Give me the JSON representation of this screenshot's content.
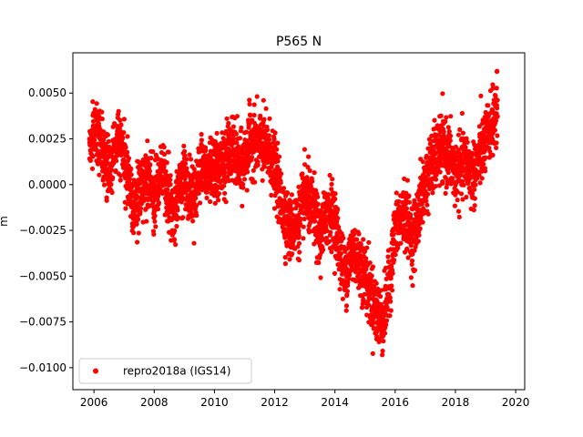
{
  "chart_data": {
    "type": "scatter",
    "title": "P565 N",
    "xlabel": "",
    "ylabel": "m",
    "xlim": [
      2005.3,
      2020.3
    ],
    "ylim": [
      -0.0112,
      0.0072
    ],
    "xticks": [
      2006,
      2008,
      2010,
      2012,
      2014,
      2016,
      2018,
      2020
    ],
    "xtick_labels": [
      "2006",
      "2008",
      "2010",
      "2012",
      "2014",
      "2016",
      "2018",
      "2020"
    ],
    "yticks": [
      0.005,
      0.0025,
      0.0,
      -0.0025,
      -0.005,
      -0.0075,
      -0.01
    ],
    "ytick_labels": [
      "0.0050",
      "0.0025",
      "0.0000",
      "−0.0025",
      "−0.0050",
      "−0.0075",
      "−0.0100"
    ],
    "grid": false,
    "legend_position": "lower-left",
    "series": [
      {
        "name": "repro2018a (IGS14)",
        "color": "#ff0000",
        "marker": "circle",
        "x_range": [
          2005.85,
          2019.4
        ],
        "trend_x": [
          2005.85,
          2006.1,
          2006.3,
          2006.5,
          2006.8,
          2007.0,
          2007.3,
          2007.5,
          2007.7,
          2008.0,
          2008.3,
          2008.6,
          2009.0,
          2009.3,
          2009.6,
          2010.0,
          2010.3,
          2010.6,
          2010.9,
          2011.2,
          2011.5,
          2011.8,
          2012.0,
          2012.2,
          2012.5,
          2012.8,
          2013.0,
          2013.3,
          2013.5,
          2013.8,
          2014.0,
          2014.3,
          2014.6,
          2014.9,
          2015.2,
          2015.4,
          2015.6,
          2015.8,
          2016.0,
          2016.3,
          2016.6,
          2016.9,
          2017.2,
          2017.5,
          2017.8,
          2018.0,
          2018.3,
          2018.6,
          2018.9,
          2019.2,
          2019.4
        ],
        "trend_y": [
          0.0022,
          0.0028,
          0.0018,
          0.0005,
          0.0028,
          0.0015,
          -0.0012,
          -0.0008,
          0.0003,
          -0.0005,
          0.0008,
          -0.0015,
          0.0005,
          -0.0005,
          0.0012,
          0.0006,
          0.0012,
          0.002,
          0.0008,
          0.0025,
          0.0022,
          0.0018,
          0.0008,
          -0.0008,
          -0.0025,
          -0.002,
          -0.0005,
          -0.0015,
          -0.003,
          -0.0012,
          -0.002,
          -0.005,
          -0.0035,
          -0.0045,
          -0.006,
          -0.007,
          -0.0075,
          -0.0055,
          -0.0025,
          -0.0015,
          -0.003,
          -0.0005,
          0.001,
          0.002,
          0.0015,
          0.0005,
          0.0012,
          0.0005,
          0.002,
          0.0032,
          0.0042
        ],
        "noise_amplitude": 0.0014,
        "point_count": 3600
      }
    ]
  }
}
